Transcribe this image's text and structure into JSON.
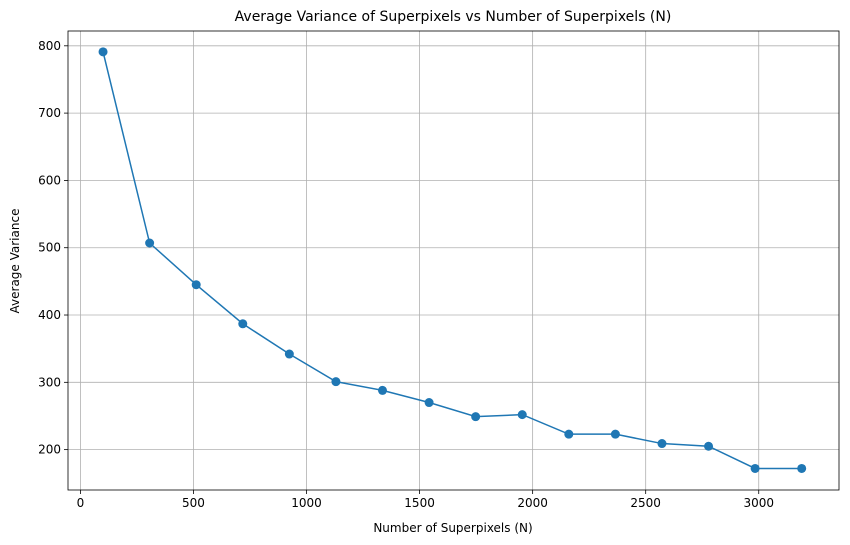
{
  "chart_data": {
    "type": "line",
    "title": "Average Variance of Superpixels vs Number of Superpixels (N)",
    "xlabel": "Number of Superpixels (N)",
    "ylabel": "Average Variance",
    "xlim": [
      -55,
      3355
    ],
    "ylim": [
      140,
      822
    ],
    "xticks": [
      0,
      500,
      1000,
      1500,
      2000,
      2500,
      3000
    ],
    "yticks": [
      200,
      300,
      400,
      500,
      600,
      700,
      800
    ],
    "grid": true,
    "series": [
      {
        "color": "#1f77b4",
        "marker": "circle",
        "x": [
          100,
          306,
          512,
          718,
          924,
          1130,
          1336,
          1542,
          1748,
          1954,
          2160,
          2366,
          2572,
          2778,
          2984,
          3190
        ],
        "y": [
          791,
          507,
          445,
          387,
          342,
          301,
          288,
          270,
          249,
          252,
          223,
          223,
          209,
          205,
          172,
          172
        ]
      }
    ]
  }
}
